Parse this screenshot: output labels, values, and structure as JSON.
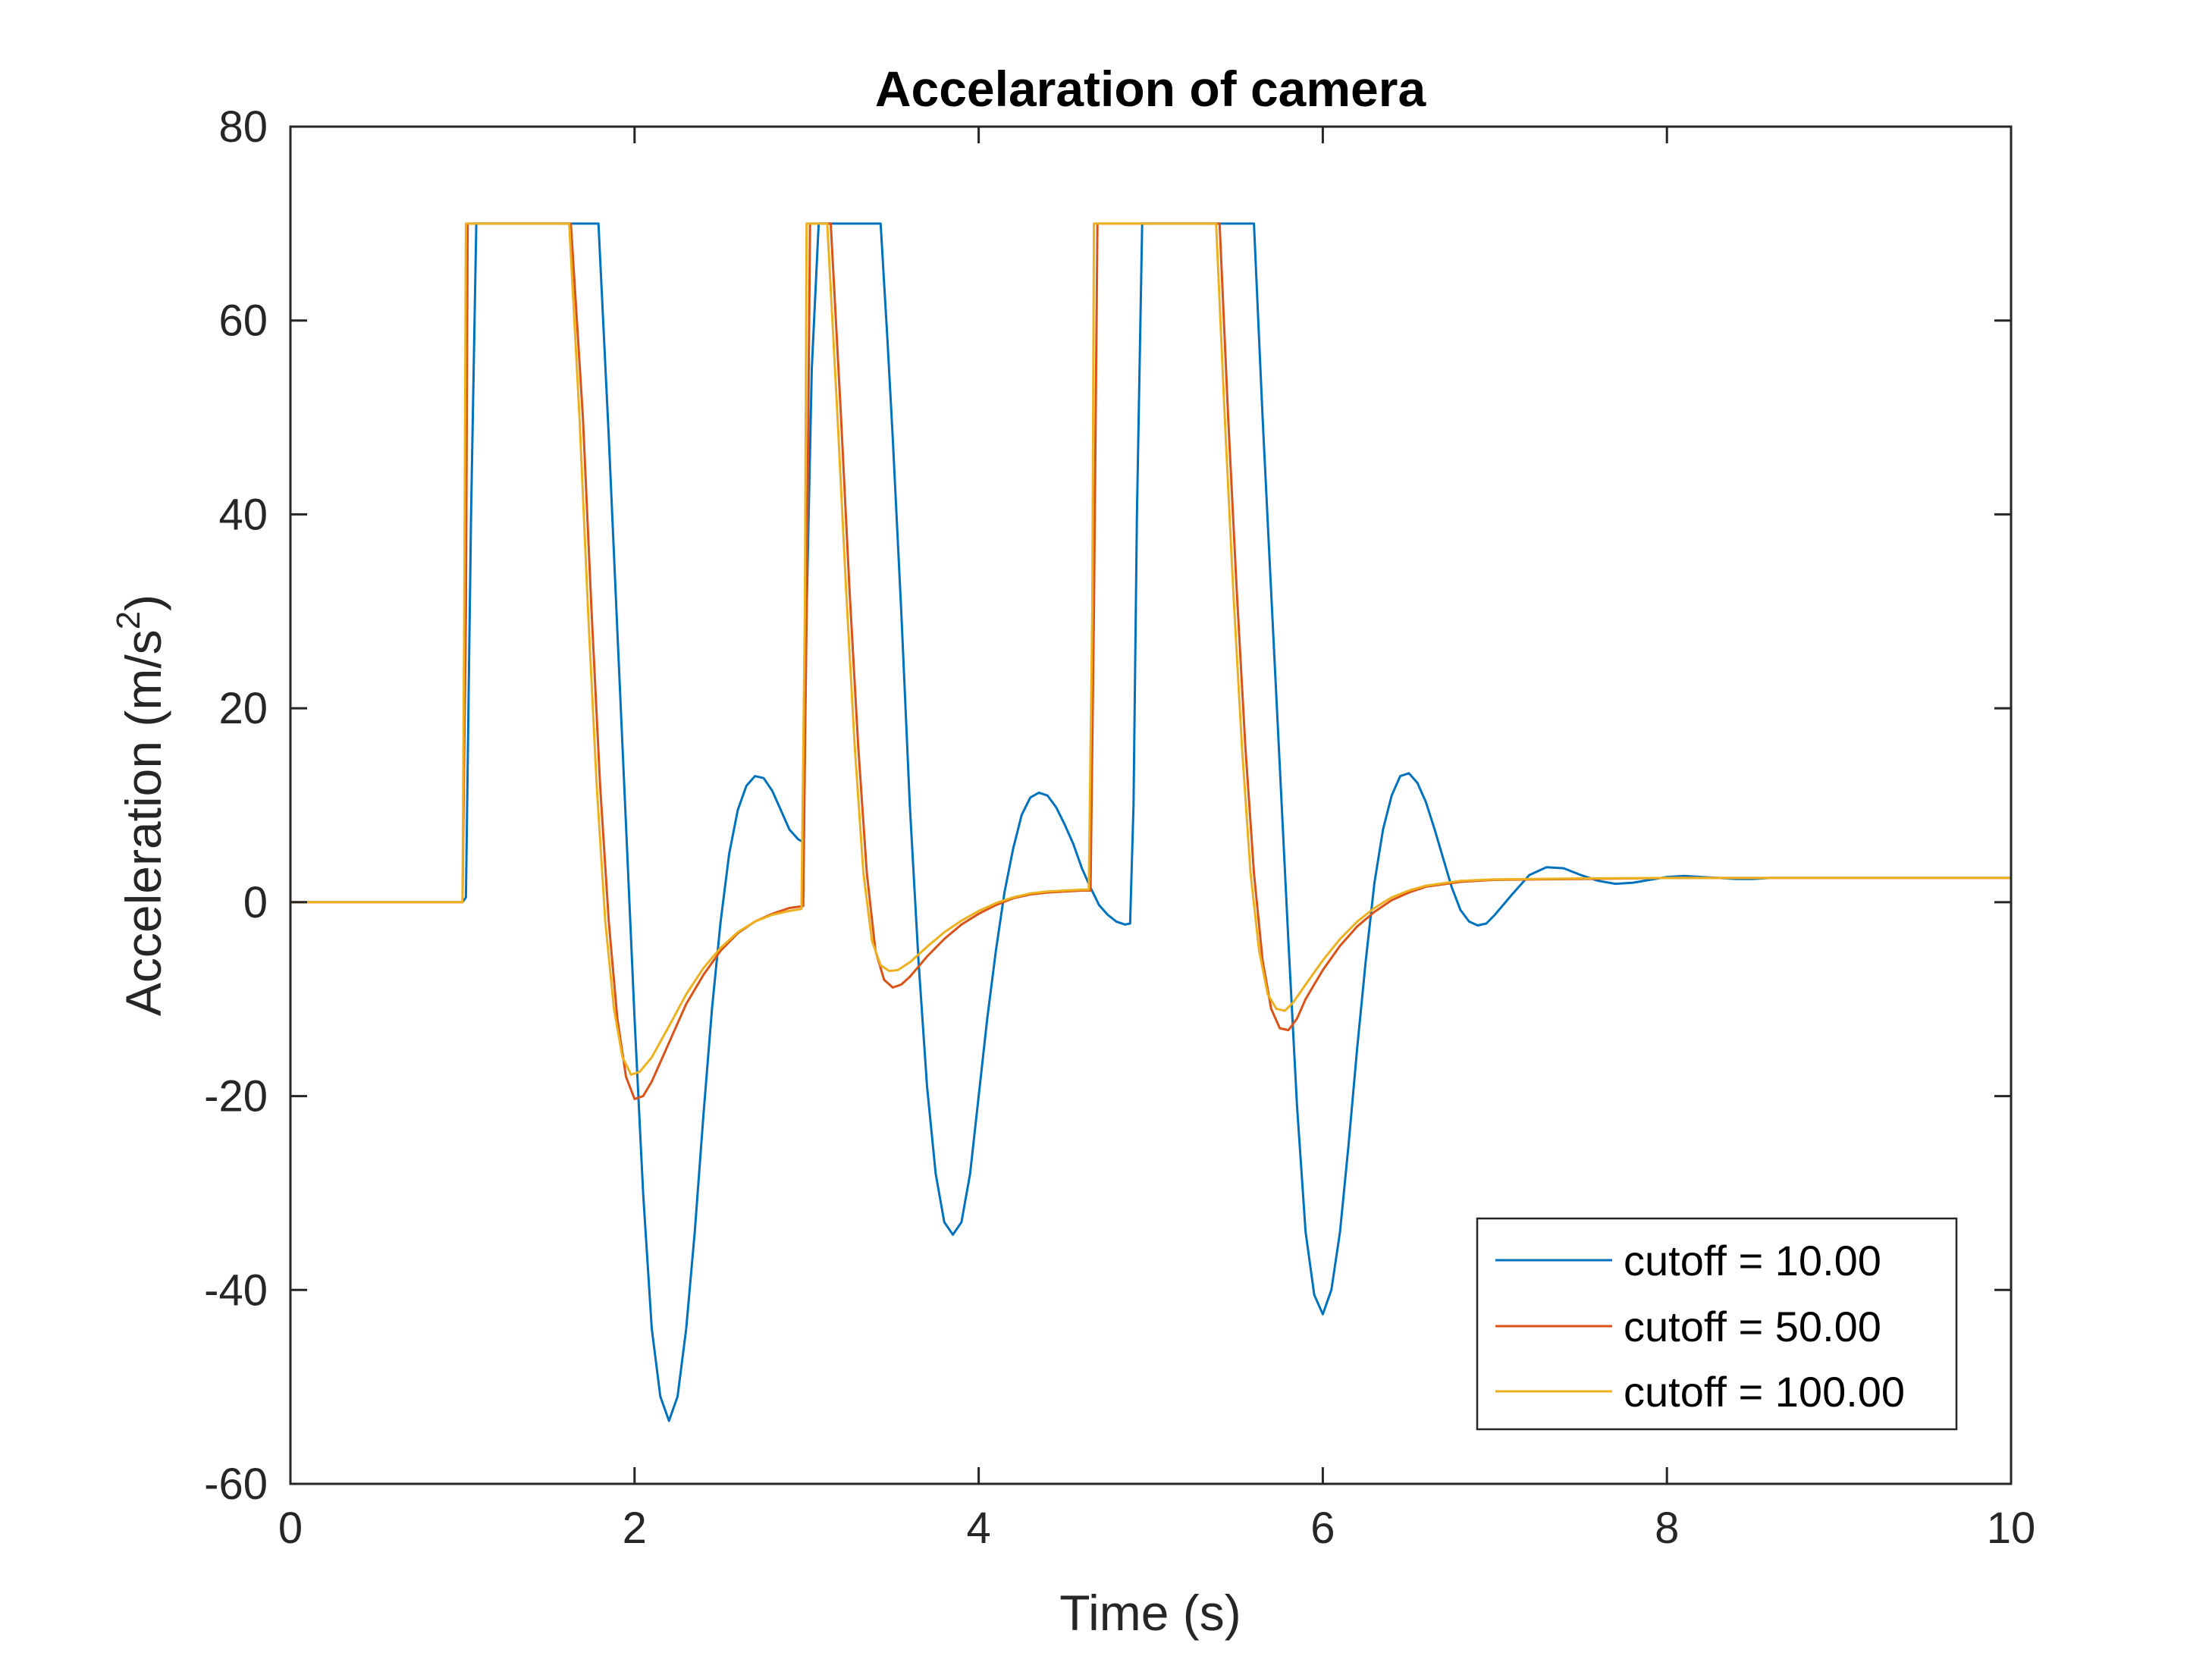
{
  "chart_data": {
    "type": "line",
    "title": "Accelaration of camera",
    "xlabel": "Time (s)",
    "ylabel": "Acceleration (m/s",
    "ylabel_sup": "2",
    "xlim": [
      0,
      10
    ],
    "ylim": [
      -60,
      80
    ],
    "xticks": [
      0,
      2,
      4,
      6,
      8,
      10
    ],
    "yticks": [
      -60,
      -40,
      -20,
      0,
      20,
      40,
      60,
      80
    ],
    "xtick_labels": [
      "0",
      "2",
      "4",
      "6",
      "8",
      "10"
    ],
    "ytick_labels": [
      "-60",
      "-40",
      "-20",
      "0",
      "20",
      "40",
      "60",
      "80"
    ],
    "grid": false,
    "legend": "bottom-right",
    "series": [
      {
        "name": "cutoff = 10.00",
        "color": "#0072BD",
        "points": [
          [
            0,
            0
          ],
          [
            1,
            0
          ],
          [
            1.02,
            0.5
          ],
          [
            1.05,
            40
          ],
          [
            1.08,
            70
          ],
          [
            1.79,
            70
          ],
          [
            1.85,
            48
          ],
          [
            1.9,
            28
          ],
          [
            1.95,
            8
          ],
          [
            2.0,
            -12
          ],
          [
            2.05,
            -30
          ],
          [
            2.1,
            -44
          ],
          [
            2.15,
            -51
          ],
          [
            2.2,
            -53.5
          ],
          [
            2.25,
            -51
          ],
          [
            2.3,
            -44
          ],
          [
            2.35,
            -34
          ],
          [
            2.4,
            -22
          ],
          [
            2.45,
            -11
          ],
          [
            2.5,
            -2
          ],
          [
            2.55,
            5
          ],
          [
            2.6,
            9.5
          ],
          [
            2.65,
            12
          ],
          [
            2.7,
            13
          ],
          [
            2.75,
            12.8
          ],
          [
            2.8,
            11.5
          ],
          [
            2.85,
            9.5
          ],
          [
            2.9,
            7.5
          ],
          [
            2.95,
            6.5
          ],
          [
            2.98,
            6.2
          ],
          [
            3.0,
            30
          ],
          [
            3.03,
            55
          ],
          [
            3.07,
            70
          ],
          [
            3.43,
            70
          ],
          [
            3.47,
            58
          ],
          [
            3.5,
            48
          ],
          [
            3.55,
            30
          ],
          [
            3.6,
            10
          ],
          [
            3.65,
            -6
          ],
          [
            3.7,
            -19
          ],
          [
            3.75,
            -28
          ],
          [
            3.8,
            -33
          ],
          [
            3.85,
            -34.3
          ],
          [
            3.9,
            -33
          ],
          [
            3.95,
            -28
          ],
          [
            4.0,
            -20
          ],
          [
            4.05,
            -12
          ],
          [
            4.1,
            -5
          ],
          [
            4.15,
            1
          ],
          [
            4.2,
            5.5
          ],
          [
            4.25,
            9
          ],
          [
            4.3,
            10.8
          ],
          [
            4.35,
            11.3
          ],
          [
            4.4,
            11
          ],
          [
            4.45,
            9.8
          ],
          [
            4.5,
            8
          ],
          [
            4.55,
            6
          ],
          [
            4.6,
            3.5
          ],
          [
            4.65,
            1.5
          ],
          [
            4.7,
            -0.3
          ],
          [
            4.75,
            -1.3
          ],
          [
            4.8,
            -2
          ],
          [
            4.85,
            -2.3
          ],
          [
            4.88,
            -2.2
          ],
          [
            4.9,
            10
          ],
          [
            4.92,
            40
          ],
          [
            4.95,
            70
          ],
          [
            5.6,
            70
          ],
          [
            5.65,
            50
          ],
          [
            5.7,
            32
          ],
          [
            5.75,
            14
          ],
          [
            5.8,
            -4
          ],
          [
            5.85,
            -21
          ],
          [
            5.9,
            -34
          ],
          [
            5.95,
            -40.5
          ],
          [
            6.0,
            -42.5
          ],
          [
            6.05,
            -40
          ],
          [
            6.1,
            -34
          ],
          [
            6.15,
            -25
          ],
          [
            6.2,
            -15
          ],
          [
            6.25,
            -6
          ],
          [
            6.3,
            2
          ],
          [
            6.35,
            7.5
          ],
          [
            6.4,
            11
          ],
          [
            6.45,
            13
          ],
          [
            6.5,
            13.3
          ],
          [
            6.55,
            12.3
          ],
          [
            6.6,
            10.3
          ],
          [
            6.65,
            7.5
          ],
          [
            6.7,
            4.5
          ],
          [
            6.75,
            1.5
          ],
          [
            6.8,
            -0.8
          ],
          [
            6.85,
            -2
          ],
          [
            6.9,
            -2.4
          ],
          [
            6.95,
            -2.2
          ],
          [
            7.0,
            -1.3
          ],
          [
            7.1,
            0.8
          ],
          [
            7.2,
            2.8
          ],
          [
            7.3,
            3.6
          ],
          [
            7.4,
            3.5
          ],
          [
            7.5,
            2.8
          ],
          [
            7.6,
            2.2
          ],
          [
            7.7,
            1.9
          ],
          [
            7.8,
            2
          ],
          [
            7.9,
            2.3
          ],
          [
            8.0,
            2.6
          ],
          [
            8.1,
            2.7
          ],
          [
            8.2,
            2.6
          ],
          [
            8.3,
            2.5
          ],
          [
            8.4,
            2.4
          ],
          [
            8.5,
            2.4
          ],
          [
            8.6,
            2.5
          ],
          [
            8.7,
            2.5
          ],
          [
            8.8,
            2.5
          ],
          [
            9.0,
            2.5
          ],
          [
            10,
            2.5
          ]
        ]
      },
      {
        "name": "cutoff = 50.00",
        "color": "#D95319",
        "points": [
          [
            0,
            0
          ],
          [
            1,
            0
          ],
          [
            1.02,
            30
          ],
          [
            1.03,
            70
          ],
          [
            1.63,
            70
          ],
          [
            1.7,
            50
          ],
          [
            1.75,
            30
          ],
          [
            1.8,
            12
          ],
          [
            1.85,
            -2
          ],
          [
            1.9,
            -12
          ],
          [
            1.95,
            -18
          ],
          [
            2.0,
            -20.3
          ],
          [
            2.05,
            -20
          ],
          [
            2.1,
            -18.5
          ],
          [
            2.2,
            -14.5
          ],
          [
            2.3,
            -10.5
          ],
          [
            2.4,
            -7.5
          ],
          [
            2.5,
            -5
          ],
          [
            2.6,
            -3.2
          ],
          [
            2.7,
            -2
          ],
          [
            2.8,
            -1.2
          ],
          [
            2.9,
            -0.6
          ],
          [
            2.98,
            -0.4
          ],
          [
            3.0,
            30
          ],
          [
            3.02,
            70
          ],
          [
            3.14,
            70
          ],
          [
            3.2,
            50
          ],
          [
            3.25,
            32
          ],
          [
            3.3,
            16
          ],
          [
            3.35,
            3
          ],
          [
            3.4,
            -5
          ],
          [
            3.45,
            -8
          ],
          [
            3.5,
            -8.8
          ],
          [
            3.55,
            -8.5
          ],
          [
            3.6,
            -7.7
          ],
          [
            3.7,
            -5.6
          ],
          [
            3.8,
            -3.8
          ],
          [
            3.9,
            -2.3
          ],
          [
            4.0,
            -1.2
          ],
          [
            4.1,
            -0.3
          ],
          [
            4.2,
            0.4
          ],
          [
            4.3,
            0.8
          ],
          [
            4.4,
            1
          ],
          [
            4.5,
            1.1
          ],
          [
            4.6,
            1.2
          ],
          [
            4.65,
            1.2
          ],
          [
            4.67,
            30
          ],
          [
            4.69,
            70
          ],
          [
            5.4,
            70
          ],
          [
            5.45,
            50
          ],
          [
            5.5,
            32
          ],
          [
            5.55,
            16
          ],
          [
            5.6,
            3
          ],
          [
            5.65,
            -6
          ],
          [
            5.7,
            -11
          ],
          [
            5.75,
            -13
          ],
          [
            5.8,
            -13.2
          ],
          [
            5.85,
            -12
          ],
          [
            5.9,
            -10
          ],
          [
            6.0,
            -7
          ],
          [
            6.1,
            -4.5
          ],
          [
            6.2,
            -2.5
          ],
          [
            6.3,
            -1
          ],
          [
            6.4,
            0.2
          ],
          [
            6.5,
            1
          ],
          [
            6.6,
            1.6
          ],
          [
            6.8,
            2.1
          ],
          [
            7.0,
            2.3
          ],
          [
            7.5,
            2.4
          ],
          [
            8.0,
            2.5
          ],
          [
            10,
            2.5
          ]
        ]
      },
      {
        "name": "cutoff = 100.00",
        "color": "#EDB120",
        "points": [
          [
            0,
            0
          ],
          [
            1,
            0
          ],
          [
            1.01,
            30
          ],
          [
            1.02,
            70
          ],
          [
            1.62,
            70
          ],
          [
            1.68,
            50
          ],
          [
            1.73,
            30
          ],
          [
            1.78,
            12
          ],
          [
            1.83,
            -2
          ],
          [
            1.88,
            -11
          ],
          [
            1.93,
            -16
          ],
          [
            1.98,
            -17.8
          ],
          [
            2.03,
            -17.5
          ],
          [
            2.1,
            -16
          ],
          [
            2.2,
            -12.8
          ],
          [
            2.3,
            -9.5
          ],
          [
            2.4,
            -6.8
          ],
          [
            2.5,
            -4.7
          ],
          [
            2.6,
            -3.1
          ],
          [
            2.7,
            -2
          ],
          [
            2.8,
            -1.3
          ],
          [
            2.9,
            -0.9
          ],
          [
            2.97,
            -0.7
          ],
          [
            2.99,
            30
          ],
          [
            3.0,
            70
          ],
          [
            3.12,
            70
          ],
          [
            3.18,
            50
          ],
          [
            3.23,
            32
          ],
          [
            3.28,
            16
          ],
          [
            3.33,
            3
          ],
          [
            3.38,
            -4
          ],
          [
            3.43,
            -6.5
          ],
          [
            3.48,
            -7.1
          ],
          [
            3.53,
            -7
          ],
          [
            3.6,
            -6.2
          ],
          [
            3.7,
            -4.6
          ],
          [
            3.8,
            -3.1
          ],
          [
            3.9,
            -1.9
          ],
          [
            4.0,
            -0.9
          ],
          [
            4.1,
            -0.1
          ],
          [
            4.2,
            0.5
          ],
          [
            4.3,
            0.9
          ],
          [
            4.4,
            1.1
          ],
          [
            4.5,
            1.2
          ],
          [
            4.6,
            1.3
          ],
          [
            4.64,
            1.3
          ],
          [
            4.66,
            30
          ],
          [
            4.67,
            70
          ],
          [
            5.38,
            70
          ],
          [
            5.43,
            50
          ],
          [
            5.48,
            32
          ],
          [
            5.53,
            16
          ],
          [
            5.58,
            3
          ],
          [
            5.63,
            -5
          ],
          [
            5.68,
            -9.5
          ],
          [
            5.73,
            -11
          ],
          [
            5.78,
            -11.2
          ],
          [
            5.83,
            -10.3
          ],
          [
            5.9,
            -8.5
          ],
          [
            6.0,
            -6
          ],
          [
            6.1,
            -3.8
          ],
          [
            6.2,
            -2
          ],
          [
            6.3,
            -0.6
          ],
          [
            6.4,
            0.5
          ],
          [
            6.5,
            1.2
          ],
          [
            6.6,
            1.7
          ],
          [
            6.8,
            2.2
          ],
          [
            7.0,
            2.35
          ],
          [
            7.5,
            2.45
          ],
          [
            8.0,
            2.5
          ],
          [
            10,
            2.5
          ]
        ]
      }
    ]
  }
}
